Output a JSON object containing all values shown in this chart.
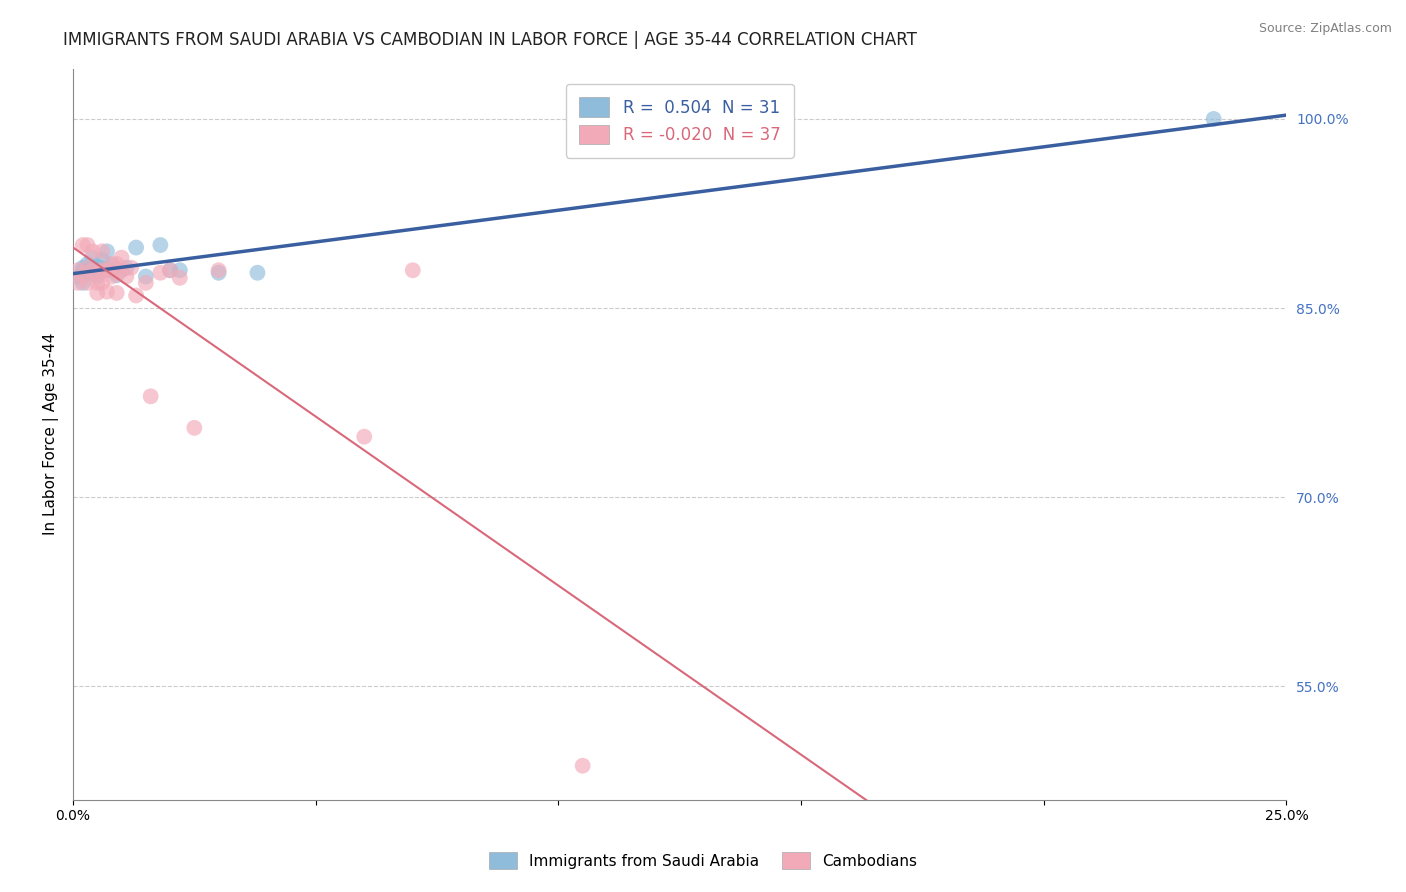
{
  "title": "IMMIGRANTS FROM SAUDI ARABIA VS CAMBODIAN IN LABOR FORCE | AGE 35-44 CORRELATION CHART",
  "source": "Source: ZipAtlas.com",
  "ylabel": "In Labor Force | Age 35-44",
  "xlim": [
    0.0,
    0.25
  ],
  "ylim": [
    0.46,
    1.04
  ],
  "xticks": [
    0.0,
    0.05,
    0.1,
    0.15,
    0.2,
    0.25
  ],
  "xtick_labels": [
    "0.0%",
    "",
    "",
    "",
    "",
    "25.0%"
  ],
  "ytick_vals": [
    0.55,
    0.7,
    0.85,
    1.0
  ],
  "grid_color": "#cccccc",
  "blue_color": "#8fbcdb",
  "pink_color": "#f2aab8",
  "blue_line_color": "#3a5fa0",
  "pink_line_color": "#d9687a",
  "r_blue": 0.504,
  "n_blue": 31,
  "r_pink": -0.02,
  "n_pink": 37,
  "legend_label_blue": "Immigrants from Saudi Arabia",
  "legend_label_pink": "Cambodians",
  "blue_x": [
    0.001,
    0.002,
    0.002,
    0.002,
    0.003,
    0.003,
    0.003,
    0.004,
    0.004,
    0.004,
    0.005,
    0.005,
    0.005,
    0.006,
    0.006,
    0.006,
    0.007,
    0.007,
    0.008,
    0.008,
    0.009,
    0.01,
    0.011,
    0.013,
    0.015,
    0.018,
    0.02,
    0.022,
    0.03,
    0.038,
    0.235
  ],
  "blue_y": [
    0.875,
    0.88,
    0.882,
    0.87,
    0.88,
    0.885,
    0.878,
    0.88,
    0.89,
    0.882,
    0.878,
    0.875,
    0.883,
    0.88,
    0.888,
    0.882,
    0.88,
    0.895,
    0.88,
    0.884,
    0.876,
    0.88,
    0.882,
    0.898,
    0.875,
    0.9,
    0.88,
    0.88,
    0.878,
    0.878,
    1.0
  ],
  "pink_x": [
    0.001,
    0.001,
    0.002,
    0.002,
    0.003,
    0.003,
    0.003,
    0.004,
    0.004,
    0.005,
    0.005,
    0.005,
    0.006,
    0.006,
    0.006,
    0.007,
    0.007,
    0.008,
    0.008,
    0.009,
    0.009,
    0.009,
    0.01,
    0.01,
    0.011,
    0.012,
    0.013,
    0.015,
    0.016,
    0.018,
    0.02,
    0.022,
    0.025,
    0.03,
    0.06,
    0.07,
    0.105
  ],
  "pink_y": [
    0.88,
    0.87,
    0.9,
    0.875,
    0.9,
    0.882,
    0.87,
    0.88,
    0.895,
    0.878,
    0.87,
    0.862,
    0.88,
    0.87,
    0.895,
    0.88,
    0.863,
    0.885,
    0.875,
    0.878,
    0.885,
    0.862,
    0.89,
    0.88,
    0.875,
    0.882,
    0.86,
    0.87,
    0.78,
    0.878,
    0.88,
    0.874,
    0.755,
    0.88,
    0.748,
    0.88,
    0.487
  ],
  "background_color": "#ffffff",
  "title_fontsize": 12,
  "axis_fontsize": 11,
  "tick_fontsize": 10
}
